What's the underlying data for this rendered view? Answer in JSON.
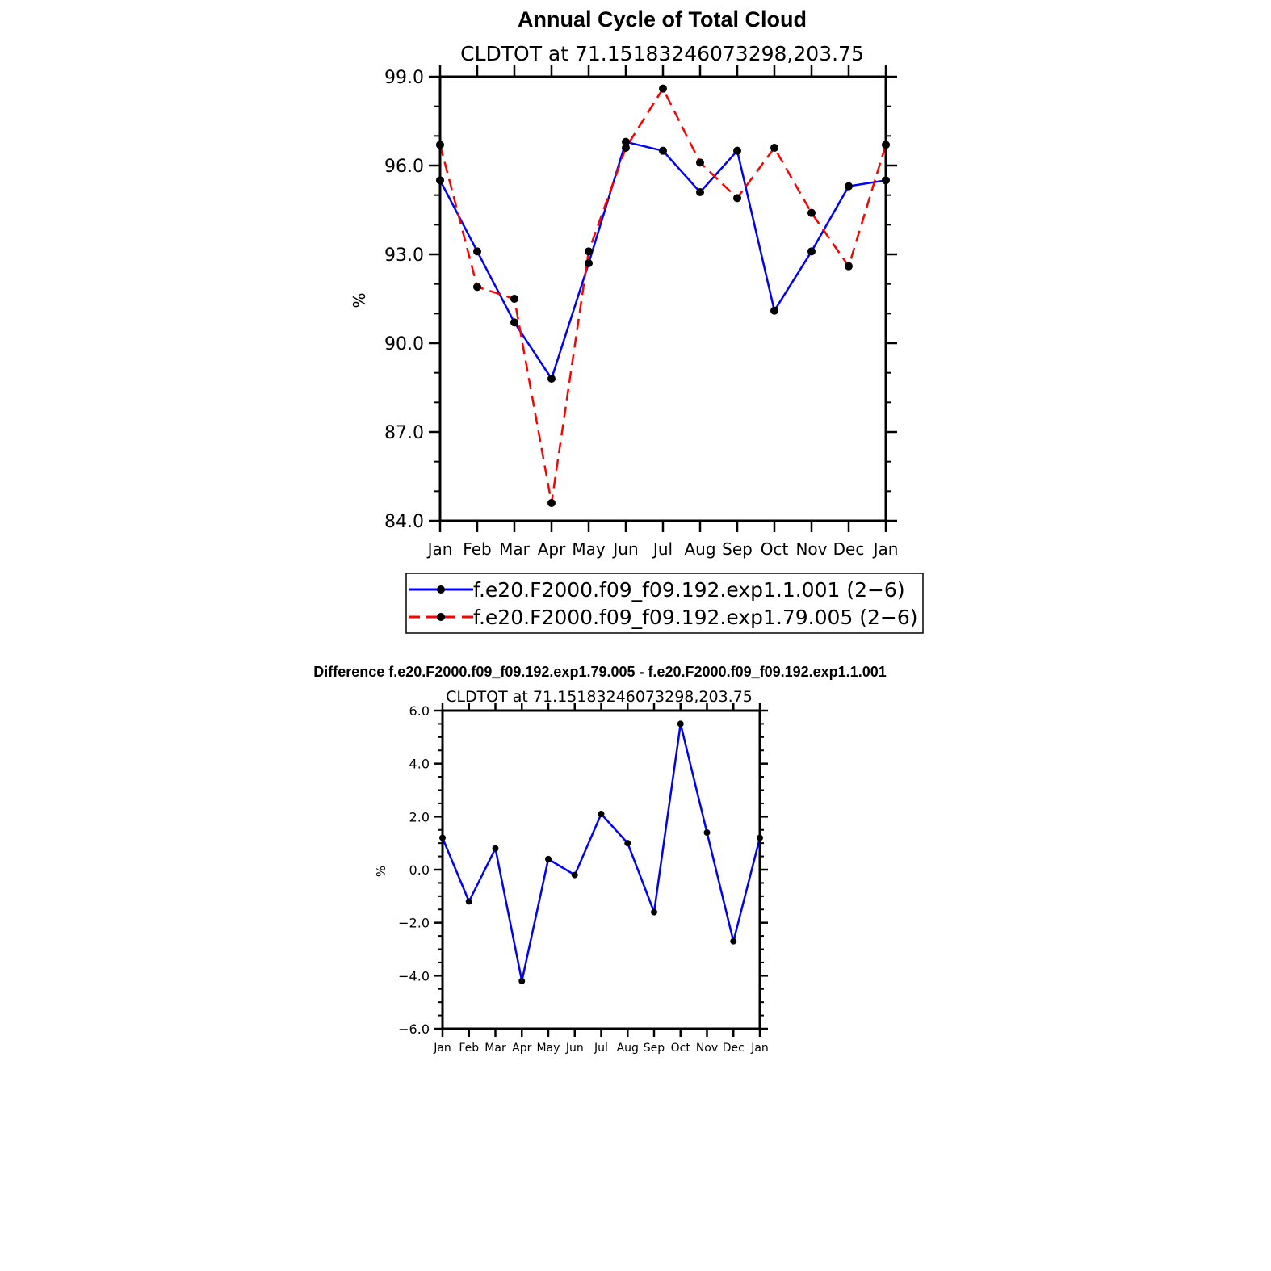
{
  "chart_data": [
    {
      "type": "line",
      "title": "Annual Cycle of Total Cloud",
      "subtitle": "CLDTOT at 71.15183246073298,203.75",
      "ylabel": "%",
      "xlabel": "",
      "categories": [
        "Jan",
        "Feb",
        "Mar",
        "Apr",
        "May",
        "Jun",
        "Jul",
        "Aug",
        "Sep",
        "Oct",
        "Nov",
        "Dec",
        "Jan"
      ],
      "ylim": [
        84.0,
        99.0
      ],
      "yticks": [
        84.0,
        87.0,
        90.0,
        93.0,
        96.0,
        99.0
      ],
      "ytick_labels": [
        "84.0",
        "87.0",
        "90.0",
        "93.0",
        "96.0",
        "99.0"
      ],
      "legend_placement": "below",
      "series": [
        {
          "name": "f.e20.F2000.f09_f09.192.exp1.1.001 (2−6)",
          "color": "#0000ff",
          "dash": "solid",
          "values": [
            95.5,
            93.1,
            90.7,
            88.8,
            92.7,
            96.8,
            96.5,
            95.1,
            96.5,
            91.1,
            93.1,
            95.3,
            95.5
          ]
        },
        {
          "name": "f.e20.F2000.f09_f09.192.exp1.79.005 (2−6)",
          "color": "#ff0000",
          "dash": "dashed",
          "values": [
            96.7,
            91.9,
            91.5,
            84.6,
            93.1,
            96.6,
            98.6,
            96.1,
            94.9,
            96.6,
            94.4,
            92.6,
            96.7
          ]
        }
      ]
    },
    {
      "type": "line",
      "title": "Difference f.e20.F2000.f09_f09.192.exp1.79.005 - f.e20.F2000.f09_f09.192.exp1.1.001",
      "subtitle": "CLDTOT at 71.15183246073298,203.75",
      "ylabel": "%",
      "xlabel": "",
      "categories": [
        "Jan",
        "Feb",
        "Mar",
        "Apr",
        "May",
        "Jun",
        "Jul",
        "Aug",
        "Sep",
        "Oct",
        "Nov",
        "Dec",
        "Jan"
      ],
      "ylim": [
        -6.0,
        6.0
      ],
      "yticks": [
        -6.0,
        -4.0,
        -2.0,
        0.0,
        2.0,
        4.0,
        6.0
      ],
      "ytick_labels": [
        "−6.0",
        "−4.0",
        "−2.0",
        "0.0",
        "2.0",
        "4.0",
        "6.0"
      ],
      "series": [
        {
          "color": "#0000ff",
          "dash": "solid",
          "values": [
            1.2,
            -1.2,
            0.8,
            -4.2,
            0.4,
            -0.2,
            2.1,
            1.0,
            -1.6,
            5.5,
            1.4,
            -2.7,
            1.2
          ]
        }
      ]
    }
  ]
}
